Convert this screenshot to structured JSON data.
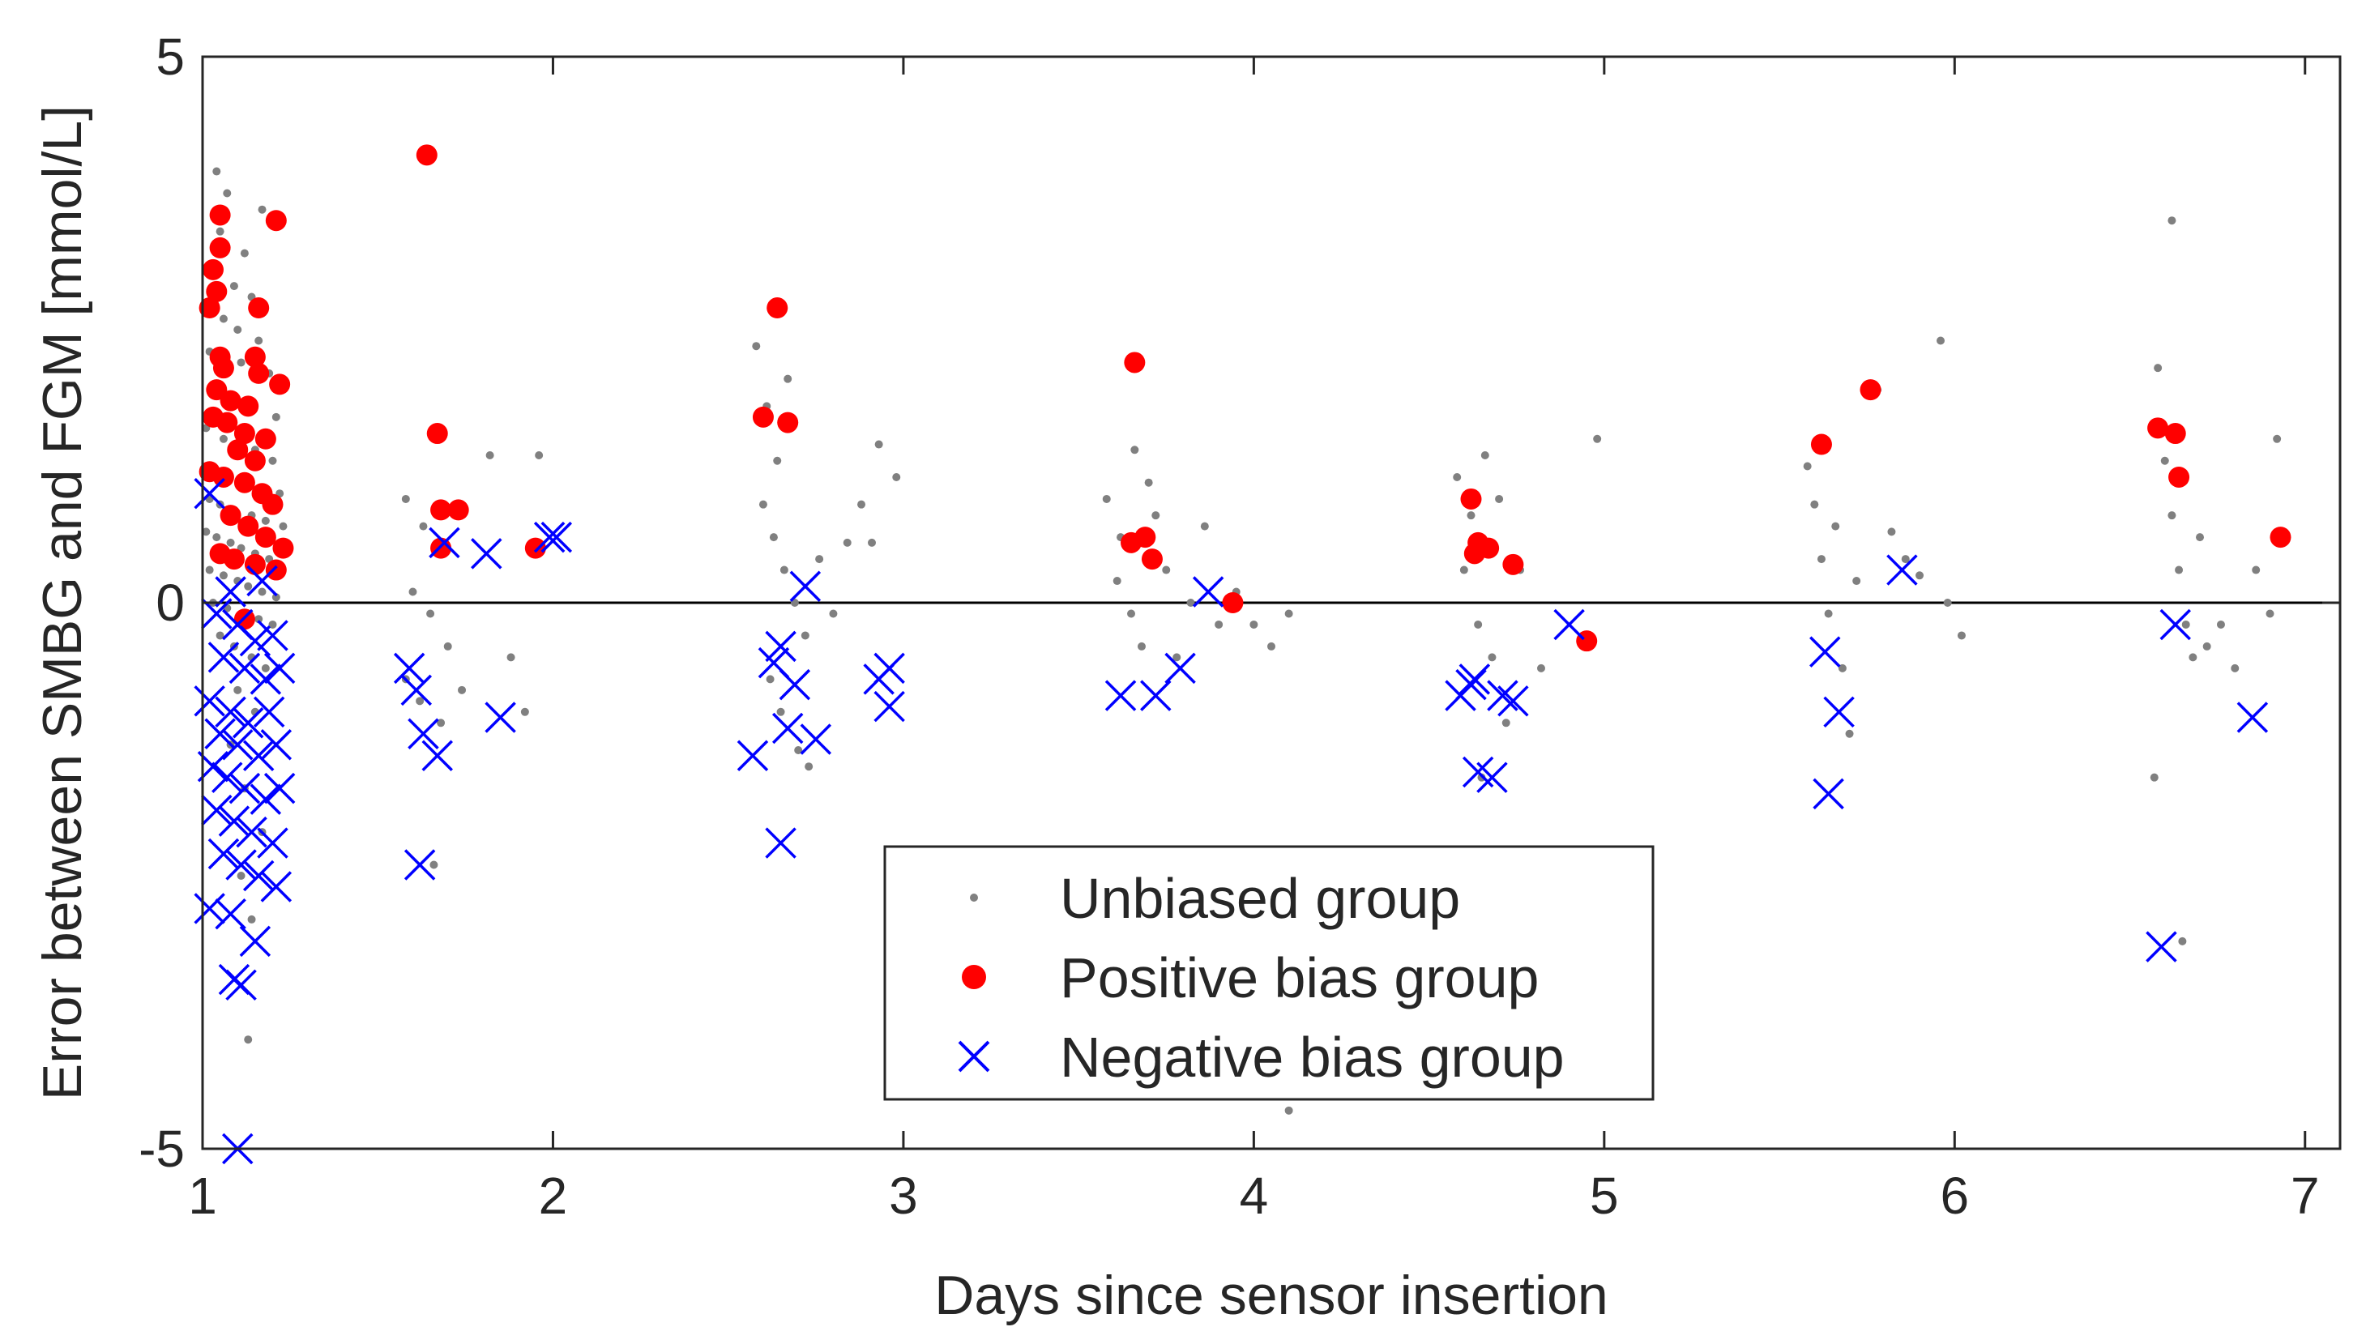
{
  "chart_data": {
    "type": "scatter",
    "title": "",
    "xlabel": "Days since sensor insertion",
    "ylabel": "Error between SMBG and FGM [mmol/L]",
    "xlim": [
      1,
      7.1
    ],
    "ylim": [
      -5,
      5
    ],
    "xticks": [
      1,
      2,
      3,
      4,
      5,
      6,
      7
    ],
    "yticks": [
      -5,
      0,
      5
    ],
    "xtick_labels": [
      "1",
      "2",
      "3",
      "4",
      "5",
      "6",
      "7"
    ],
    "ytick_labels": [
      "-5",
      "0",
      "5"
    ],
    "reference_line_y": 0,
    "grid": false,
    "legend_position": "bottom-center",
    "series": [
      {
        "name": "Unbiased group",
        "marker": "dot",
        "color": "#808080",
        "points": [
          [
            1.04,
            3.95
          ],
          [
            1.07,
            3.75
          ],
          [
            1.05,
            3.4
          ],
          [
            1.12,
            3.2
          ],
          [
            1.17,
            3.6
          ],
          [
            1.03,
            3.0
          ],
          [
            1.09,
            2.9
          ],
          [
            1.14,
            2.8
          ],
          [
            1.06,
            2.6
          ],
          [
            1.1,
            2.5
          ],
          [
            1.16,
            2.4
          ],
          [
            1.02,
            2.3
          ],
          [
            1.11,
            2.2
          ],
          [
            1.19,
            2.1
          ],
          [
            1.04,
            2.0
          ],
          [
            1.08,
            1.9
          ],
          [
            1.13,
            1.8
          ],
          [
            1.21,
            1.7
          ],
          [
            1.01,
            1.6
          ],
          [
            1.06,
            1.5
          ],
          [
            1.1,
            1.45
          ],
          [
            1.15,
            1.4
          ],
          [
            1.2,
            1.3
          ],
          [
            1.03,
            1.25
          ],
          [
            1.07,
            1.2
          ],
          [
            1.12,
            1.1
          ],
          [
            1.17,
            1.05
          ],
          [
            1.22,
            1.0
          ],
          [
            1.02,
            0.95
          ],
          [
            1.05,
            0.9
          ],
          [
            1.09,
            0.85
          ],
          [
            1.14,
            0.8
          ],
          [
            1.18,
            0.75
          ],
          [
            1.23,
            0.7
          ],
          [
            1.01,
            0.65
          ],
          [
            1.04,
            0.6
          ],
          [
            1.08,
            0.55
          ],
          [
            1.11,
            0.5
          ],
          [
            1.15,
            0.45
          ],
          [
            1.19,
            0.4
          ],
          [
            1.22,
            0.35
          ],
          [
            1.02,
            0.3
          ],
          [
            1.06,
            0.25
          ],
          [
            1.1,
            0.2
          ],
          [
            1.13,
            0.15
          ],
          [
            1.17,
            0.1
          ],
          [
            1.21,
            0.05
          ],
          [
            1.03,
            0.0
          ],
          [
            1.07,
            -0.05
          ],
          [
            1.12,
            -0.1
          ],
          [
            1.16,
            -0.15
          ],
          [
            1.2,
            -0.2
          ],
          [
            1.05,
            -0.3
          ],
          [
            1.09,
            -0.4
          ],
          [
            1.14,
            -0.5
          ],
          [
            1.18,
            -0.6
          ],
          [
            1.1,
            -0.8
          ],
          [
            1.15,
            -1.0
          ],
          [
            1.08,
            -1.3
          ],
          [
            1.12,
            -1.7
          ],
          [
            1.17,
            -2.1
          ],
          [
            1.11,
            -2.5
          ],
          [
            1.14,
            -2.9
          ],
          [
            1.13,
            -4.0
          ],
          [
            1.58,
            0.95
          ],
          [
            1.63,
            0.7
          ],
          [
            1.67,
            0.5
          ],
          [
            1.6,
            0.1
          ],
          [
            1.65,
            -0.1
          ],
          [
            1.7,
            -0.4
          ],
          [
            1.58,
            -0.7
          ],
          [
            1.62,
            -0.9
          ],
          [
            1.68,
            -1.1
          ],
          [
            1.74,
            -0.8
          ],
          [
            1.66,
            -2.4
          ],
          [
            1.82,
            1.35
          ],
          [
            1.88,
            -0.5
          ],
          [
            1.92,
            -1.0
          ],
          [
            1.96,
            1.35
          ],
          [
            2.58,
            2.35
          ],
          [
            2.61,
            1.8
          ],
          [
            2.64,
            1.3
          ],
          [
            2.67,
            2.05
          ],
          [
            2.6,
            0.9
          ],
          [
            2.63,
            0.6
          ],
          [
            2.66,
            0.3
          ],
          [
            2.69,
            0.0
          ],
          [
            2.72,
            -0.3
          ],
          [
            2.62,
            -0.7
          ],
          [
            2.65,
            -1.0
          ],
          [
            2.7,
            -1.35
          ],
          [
            2.73,
            -1.5
          ],
          [
            2.76,
            0.4
          ],
          [
            2.8,
            -0.1
          ],
          [
            2.84,
            0.55
          ],
          [
            2.88,
            0.9
          ],
          [
            2.91,
            0.55
          ],
          [
            2.93,
            1.45
          ],
          [
            2.98,
            1.15
          ],
          [
            3.58,
            0.95
          ],
          [
            3.62,
            0.6
          ],
          [
            3.66,
            1.4
          ],
          [
            3.7,
            1.1
          ],
          [
            3.61,
            0.2
          ],
          [
            3.65,
            -0.1
          ],
          [
            3.68,
            -0.4
          ],
          [
            3.72,
            0.8
          ],
          [
            3.75,
            0.3
          ],
          [
            3.78,
            -0.5
          ],
          [
            3.82,
            0.0
          ],
          [
            3.86,
            0.7
          ],
          [
            3.9,
            -0.2
          ],
          [
            3.95,
            0.1
          ],
          [
            4.0,
            -0.2
          ],
          [
            4.05,
            -0.4
          ],
          [
            4.1,
            -0.1
          ],
          [
            4.1,
            -4.65
          ],
          [
            4.58,
            1.15
          ],
          [
            4.62,
            0.8
          ],
          [
            4.66,
            1.35
          ],
          [
            4.7,
            0.95
          ],
          [
            4.6,
            0.3
          ],
          [
            4.64,
            -0.2
          ],
          [
            4.68,
            -0.5
          ],
          [
            4.72,
            -1.1
          ],
          [
            4.65,
            -1.6
          ],
          [
            4.76,
            0.3
          ],
          [
            4.82,
            -0.6
          ],
          [
            4.98,
            1.5
          ],
          [
            5.58,
            1.25
          ],
          [
            5.6,
            0.9
          ],
          [
            5.62,
            0.4
          ],
          [
            5.64,
            -0.1
          ],
          [
            5.66,
            0.7
          ],
          [
            5.68,
            -0.6
          ],
          [
            5.7,
            -1.2
          ],
          [
            5.72,
            0.2
          ],
          [
            5.78,
            1.95
          ],
          [
            5.82,
            0.65
          ],
          [
            5.86,
            0.4
          ],
          [
            5.9,
            0.25
          ],
          [
            5.96,
            2.4
          ],
          [
            5.98,
            0.0
          ],
          [
            6.02,
            -0.3
          ],
          [
            6.58,
            2.15
          ],
          [
            6.6,
            1.3
          ],
          [
            6.62,
            0.8
          ],
          [
            6.64,
            0.3
          ],
          [
            6.66,
            -0.2
          ],
          [
            6.68,
            -0.5
          ],
          [
            6.7,
            0.6
          ],
          [
            6.72,
            -0.4
          ],
          [
            6.57,
            -1.6
          ],
          [
            6.62,
            3.5
          ],
          [
            6.65,
            -3.1
          ],
          [
            6.76,
            -0.2
          ],
          [
            6.8,
            -0.6
          ],
          [
            6.86,
            0.3
          ],
          [
            6.9,
            -0.1
          ],
          [
            6.92,
            1.5
          ]
        ]
      },
      {
        "name": "Positive bias group",
        "marker": "filled-circle",
        "color": "#ff0000",
        "points": [
          [
            1.05,
            3.55
          ],
          [
            1.21,
            3.5
          ],
          [
            1.05,
            3.25
          ],
          [
            1.03,
            3.05
          ],
          [
            1.04,
            2.85
          ],
          [
            1.02,
            2.7
          ],
          [
            1.16,
            2.7
          ],
          [
            1.05,
            2.25
          ],
          [
            1.15,
            2.25
          ],
          [
            1.06,
            2.15
          ],
          [
            1.16,
            2.1
          ],
          [
            1.22,
            2.0
          ],
          [
            1.04,
            1.95
          ],
          [
            1.08,
            1.85
          ],
          [
            1.13,
            1.8
          ],
          [
            1.03,
            1.7
          ],
          [
            1.07,
            1.65
          ],
          [
            1.12,
            1.55
          ],
          [
            1.18,
            1.5
          ],
          [
            1.1,
            1.4
          ],
          [
            1.15,
            1.3
          ],
          [
            1.02,
            1.2
          ],
          [
            1.06,
            1.15
          ],
          [
            1.12,
            1.1
          ],
          [
            1.17,
            1.0
          ],
          [
            1.2,
            0.9
          ],
          [
            1.08,
            0.8
          ],
          [
            1.13,
            0.7
          ],
          [
            1.18,
            0.6
          ],
          [
            1.23,
            0.5
          ],
          [
            1.05,
            0.45
          ],
          [
            1.09,
            0.4
          ],
          [
            1.15,
            0.35
          ],
          [
            1.21,
            0.3
          ],
          [
            1.12,
            -0.15
          ],
          [
            1.64,
            4.1
          ],
          [
            1.67,
            1.55
          ],
          [
            1.68,
            0.85
          ],
          [
            1.73,
            0.85
          ],
          [
            1.68,
            0.5
          ],
          [
            1.95,
            0.5
          ],
          [
            2.64,
            2.7
          ],
          [
            2.6,
            1.7
          ],
          [
            2.67,
            1.65
          ],
          [
            3.66,
            2.2
          ],
          [
            3.65,
            0.55
          ],
          [
            3.69,
            0.6
          ],
          [
            3.71,
            0.4
          ],
          [
            3.94,
            0.0
          ],
          [
            4.62,
            0.95
          ],
          [
            4.64,
            0.55
          ],
          [
            4.63,
            0.45
          ],
          [
            4.67,
            0.5
          ],
          [
            4.74,
            0.35
          ],
          [
            4.95,
            -0.35
          ],
          [
            5.62,
            1.45
          ],
          [
            5.76,
            1.95
          ],
          [
            6.58,
            1.6
          ],
          [
            6.63,
            1.55
          ],
          [
            6.64,
            1.15
          ],
          [
            6.93,
            0.6
          ]
        ]
      },
      {
        "name": "Negative bias group",
        "marker": "x",
        "color": "#0000ff",
        "points": [
          [
            1.02,
            1.0
          ],
          [
            1.08,
            0.1
          ],
          [
            1.17,
            0.2
          ],
          [
            1.04,
            -0.1
          ],
          [
            1.1,
            -0.2
          ],
          [
            1.15,
            -0.35
          ],
          [
            1.2,
            -0.3
          ],
          [
            1.06,
            -0.5
          ],
          [
            1.12,
            -0.6
          ],
          [
            1.18,
            -0.7
          ],
          [
            1.22,
            -0.6
          ],
          [
            1.02,
            -0.9
          ],
          [
            1.08,
            -1.0
          ],
          [
            1.13,
            -1.1
          ],
          [
            1.19,
            -1.0
          ],
          [
            1.05,
            -1.2
          ],
          [
            1.1,
            -1.3
          ],
          [
            1.16,
            -1.4
          ],
          [
            1.21,
            -1.3
          ],
          [
            1.03,
            -1.5
          ],
          [
            1.07,
            -1.6
          ],
          [
            1.12,
            -1.7
          ],
          [
            1.18,
            -1.8
          ],
          [
            1.22,
            -1.7
          ],
          [
            1.04,
            -1.9
          ],
          [
            1.09,
            -2.0
          ],
          [
            1.14,
            -2.1
          ],
          [
            1.2,
            -2.2
          ],
          [
            1.06,
            -2.3
          ],
          [
            1.11,
            -2.4
          ],
          [
            1.16,
            -2.5
          ],
          [
            1.21,
            -2.6
          ],
          [
            1.02,
            -2.8
          ],
          [
            1.08,
            -2.85
          ],
          [
            1.15,
            -3.1
          ],
          [
            1.09,
            -3.45
          ],
          [
            1.11,
            -3.5
          ],
          [
            1.1,
            -5.0
          ],
          [
            1.59,
            -0.6
          ],
          [
            1.61,
            -0.8
          ],
          [
            1.63,
            -1.2
          ],
          [
            1.67,
            -1.4
          ],
          [
            1.62,
            -2.4
          ],
          [
            1.69,
            0.55
          ],
          [
            1.81,
            0.45
          ],
          [
            1.85,
            -1.05
          ],
          [
            1.99,
            0.6
          ],
          [
            2.01,
            0.6
          ],
          [
            2.57,
            -1.4
          ],
          [
            2.63,
            -0.55
          ],
          [
            2.65,
            -0.4
          ],
          [
            2.67,
            -1.15
          ],
          [
            2.69,
            -0.75
          ],
          [
            2.72,
            0.15
          ],
          [
            2.75,
            -1.25
          ],
          [
            2.65,
            -2.2
          ],
          [
            2.93,
            -0.7
          ],
          [
            2.96,
            -0.6
          ],
          [
            2.96,
            -0.95
          ],
          [
            3.62,
            -0.85
          ],
          [
            3.72,
            -0.85
          ],
          [
            3.79,
            -0.6
          ],
          [
            3.87,
            0.1
          ],
          [
            4.59,
            -0.85
          ],
          [
            4.62,
            -0.75
          ],
          [
            4.63,
            -0.7
          ],
          [
            4.64,
            -1.55
          ],
          [
            4.68,
            -1.6
          ],
          [
            4.71,
            -0.85
          ],
          [
            4.74,
            -0.9
          ],
          [
            4.9,
            -0.2
          ],
          [
            5.63,
            -0.45
          ],
          [
            5.64,
            -1.75
          ],
          [
            5.67,
            -1.0
          ],
          [
            5.85,
            0.3
          ],
          [
            6.59,
            -3.15
          ],
          [
            6.63,
            -0.2
          ],
          [
            6.85,
            -1.05
          ]
        ]
      }
    ]
  }
}
